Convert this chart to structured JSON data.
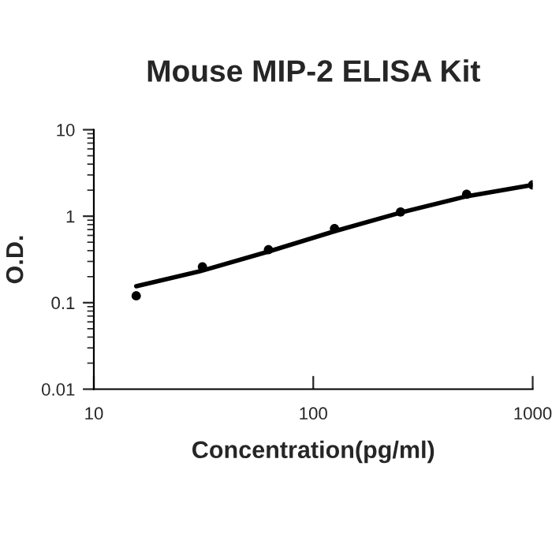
{
  "chart_data": {
    "type": "scatter",
    "title": "Mouse MIP-2 ELISA Kit",
    "xlabel": "Concentration(pg/ml)",
    "ylabel": "O.D.",
    "log": "xy",
    "xlim": [
      10,
      1000
    ],
    "xticks": [
      10,
      100,
      1000
    ],
    "ylim": [
      0.01,
      10
    ],
    "yticks": [
      0.01,
      0.1,
      1,
      10
    ],
    "grid": false,
    "legend": false,
    "series": [
      {
        "marker": "circle",
        "color": "#000000",
        "x": [
          15.6,
          31.25,
          62.5,
          125,
          250,
          500,
          1000
        ],
        "values": [
          0.12,
          0.26,
          0.41,
          0.72,
          1.12,
          1.79,
          2.3
        ]
      },
      {
        "type": "line",
        "marker": "none",
        "color": "#000000",
        "line_style": "solid",
        "x": [
          15.6,
          31.25,
          62.5,
          125,
          250,
          500,
          1000
        ],
        "values": [
          0.155,
          0.235,
          0.39,
          0.67,
          1.1,
          1.7,
          2.3
        ]
      }
    ]
  }
}
